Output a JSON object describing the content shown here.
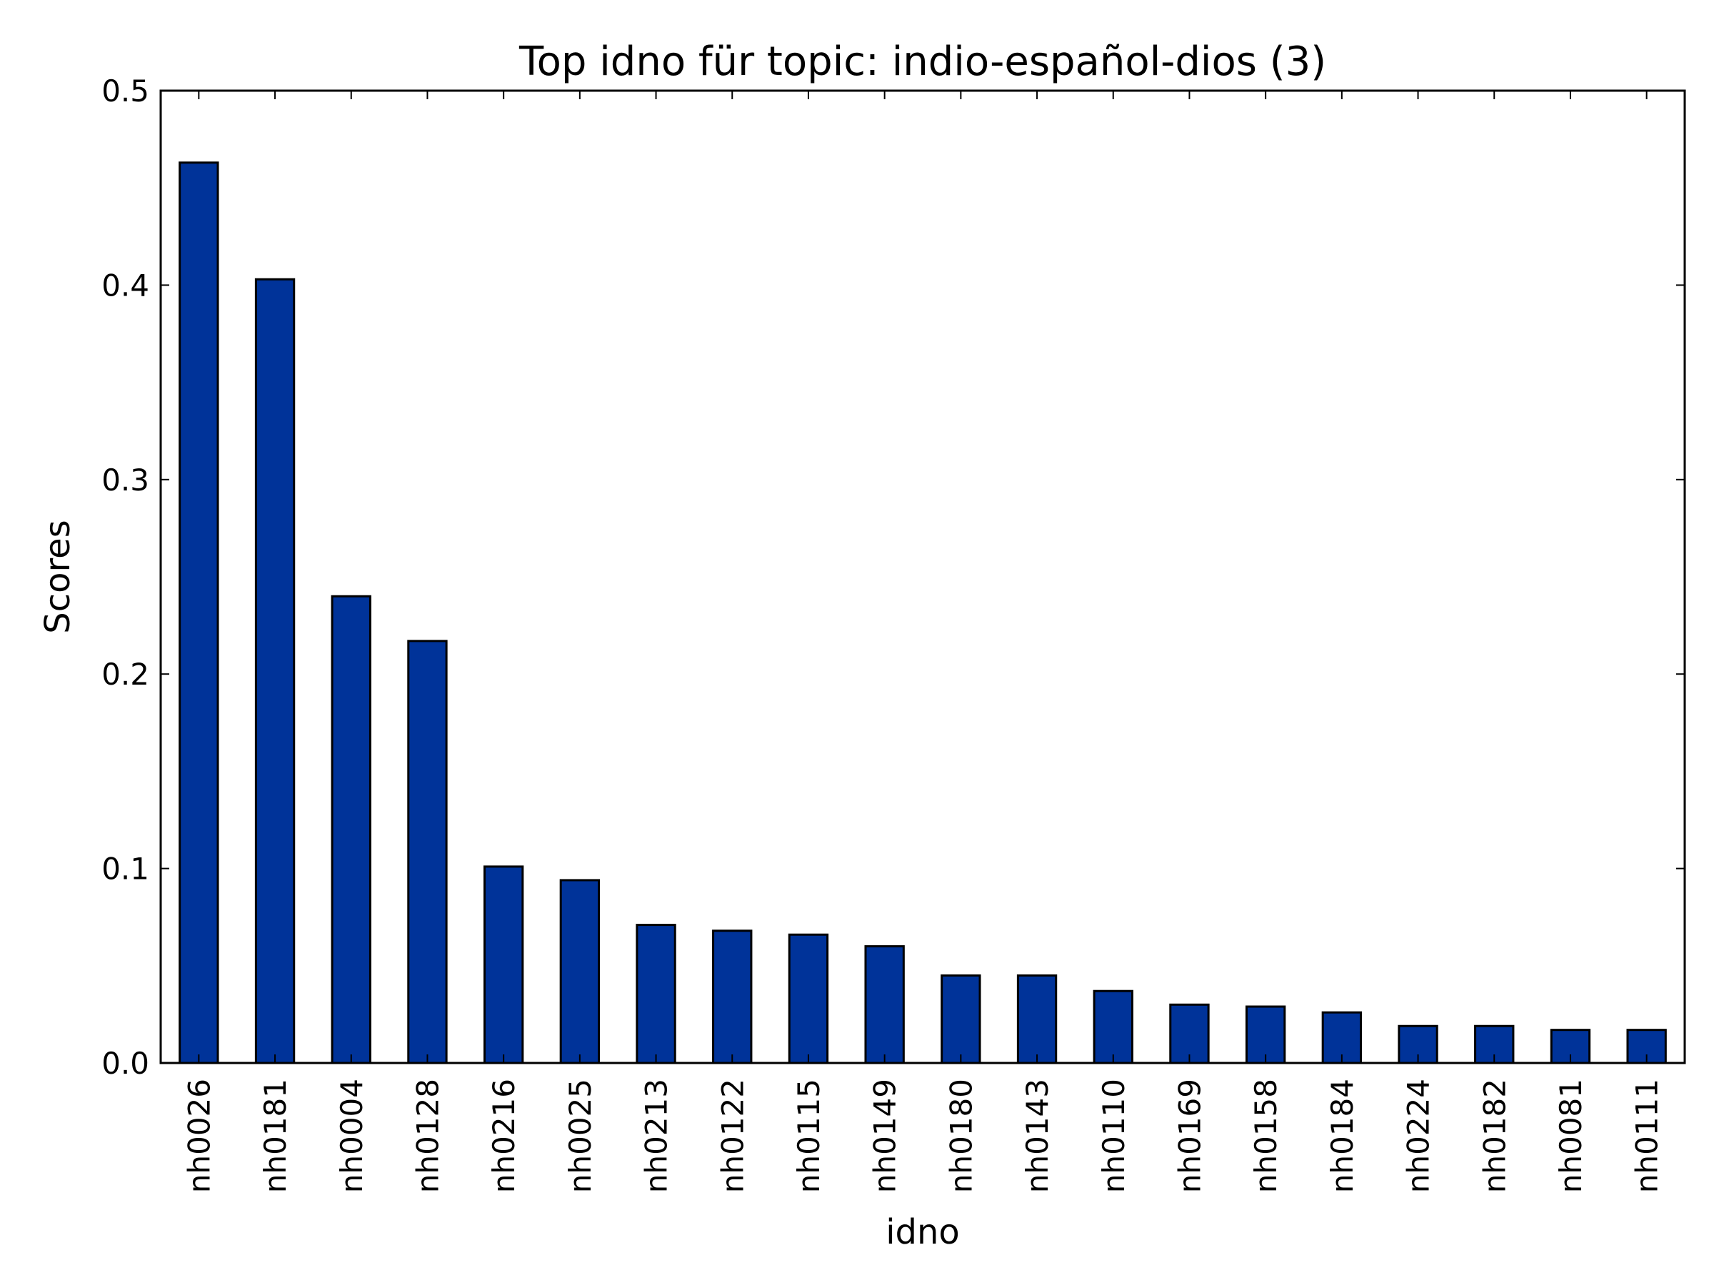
{
  "chart_data": {
    "type": "bar",
    "title": "Top idno für topic: indio-español-dios (3)",
    "xlabel": "idno",
    "ylabel": "Scores",
    "ylim": [
      0,
      0.5
    ],
    "yticks": [
      "0.0",
      "0.1",
      "0.2",
      "0.3",
      "0.4",
      "0.5"
    ],
    "grid": false,
    "bar_color": "#003399",
    "categories": [
      "nh0026",
      "nh0181",
      "nh0004",
      "nh0128",
      "nh0216",
      "nh0025",
      "nh0213",
      "nh0122",
      "nh0115",
      "nh0149",
      "nh0180",
      "nh0143",
      "nh0110",
      "nh0169",
      "nh0158",
      "nh0184",
      "nh0224",
      "nh0182",
      "nh0081",
      "nh0111"
    ],
    "values": [
      0.463,
      0.403,
      0.24,
      0.217,
      0.101,
      0.094,
      0.071,
      0.068,
      0.066,
      0.06,
      0.045,
      0.045,
      0.037,
      0.03,
      0.029,
      0.026,
      0.019,
      0.019,
      0.017,
      0.017
    ]
  }
}
